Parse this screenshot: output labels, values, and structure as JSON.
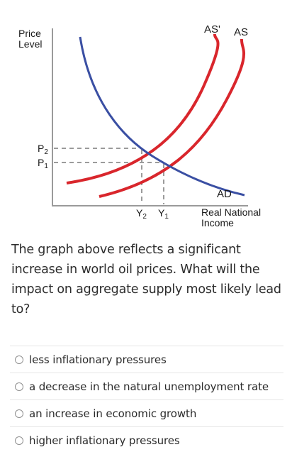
{
  "graph": {
    "ylabel_line1": "Price",
    "ylabel_line2": "Level",
    "xlabel_line1": "Real National",
    "xlabel_line2": "Income",
    "as_label": "AS",
    "as_prime_label": "AS'",
    "ad_label": "AD",
    "p2_label": "P",
    "p2_sub": "2",
    "p1_label": "P",
    "p1_sub": "1",
    "y2_label": "Y",
    "y2_sub": "2",
    "y1_label": "Y",
    "y1_sub": "1",
    "colors": {
      "as": "#d9262c",
      "as_prime": "#d9262c",
      "ad": "#3a4fa3",
      "axis": "#9a9a9a",
      "guides": "#7a7a7a"
    }
  },
  "question": {
    "text": "The graph above reflects a significant increase in world oil prices. What will the impact on aggregate supply most likely lead to?"
  },
  "options": [
    {
      "label": "less inflationary pressures",
      "selected": false
    },
    {
      "label": "a decrease in the natural unemployment rate",
      "selected": false
    },
    {
      "label": "an increase in economic growth",
      "selected": false
    },
    {
      "label": "higher inflationary pressures",
      "selected": false
    }
  ]
}
